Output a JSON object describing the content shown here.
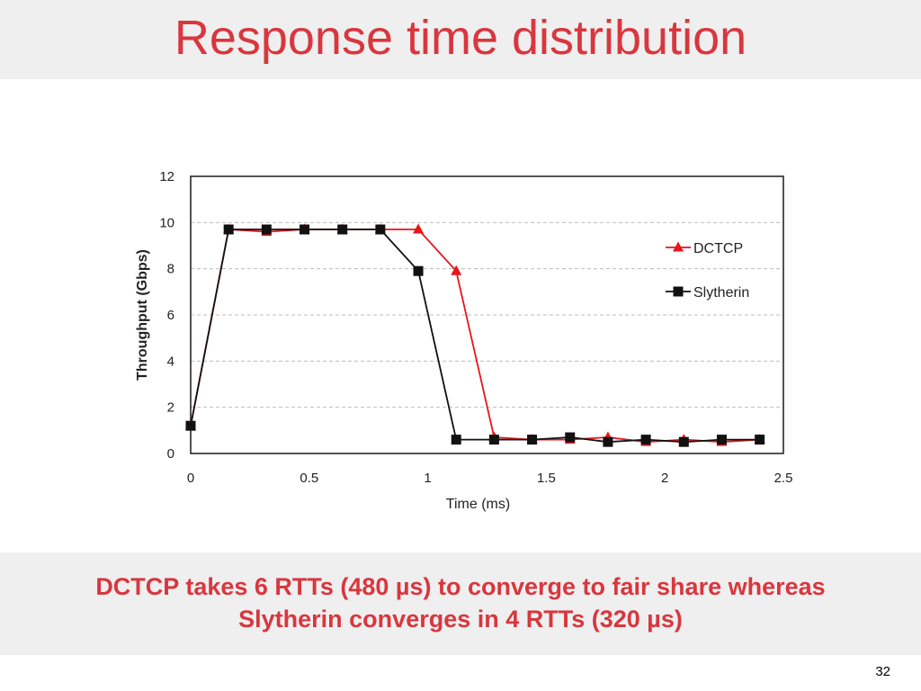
{
  "slide": {
    "title": "Response time distribution",
    "caption_line1": "DCTCP takes 6 RTTs (480 µs) to converge to fair share whereas",
    "caption_line2": "Slytherin converges in 4 RTTs (320 µs)",
    "page_number": "32",
    "accent_color": "#d9363e"
  },
  "chart_data": {
    "type": "line",
    "xlabel": "Time (ms)",
    "ylabel": "Throughput (Gbps)",
    "xlim": [
      0,
      2.5
    ],
    "ylim": [
      0,
      12
    ],
    "xticks": [
      "0",
      "0.5",
      "1",
      "1.5",
      "2",
      "2.5"
    ],
    "yticks": [
      "0",
      "2",
      "4",
      "6",
      "8",
      "10",
      "12"
    ],
    "grid": "horizontal-dashed",
    "legend_position": "right",
    "series": [
      {
        "name": "DCTCP",
        "color": "#e8151b",
        "marker": "triangle",
        "x": [
          0,
          0.16,
          0.32,
          0.48,
          0.64,
          0.8,
          0.96,
          1.12,
          1.28,
          1.44,
          1.6,
          1.76,
          1.92,
          2.08,
          2.24,
          2.4
        ],
        "y": [
          1.2,
          9.7,
          9.6,
          9.7,
          9.7,
          9.7,
          9.7,
          7.9,
          0.7,
          0.6,
          0.6,
          0.7,
          0.5,
          0.6,
          0.5,
          0.6
        ]
      },
      {
        "name": "Slytherin",
        "color": "#111111",
        "marker": "square",
        "x": [
          0,
          0.16,
          0.32,
          0.48,
          0.64,
          0.8,
          0.96,
          1.12,
          1.28,
          1.44,
          1.6,
          1.76,
          1.92,
          2.08,
          2.24,
          2.4
        ],
        "y": [
          1.2,
          9.7,
          9.7,
          9.7,
          9.7,
          9.7,
          7.9,
          0.6,
          0.6,
          0.6,
          0.7,
          0.5,
          0.6,
          0.5,
          0.6,
          0.6
        ]
      }
    ]
  }
}
